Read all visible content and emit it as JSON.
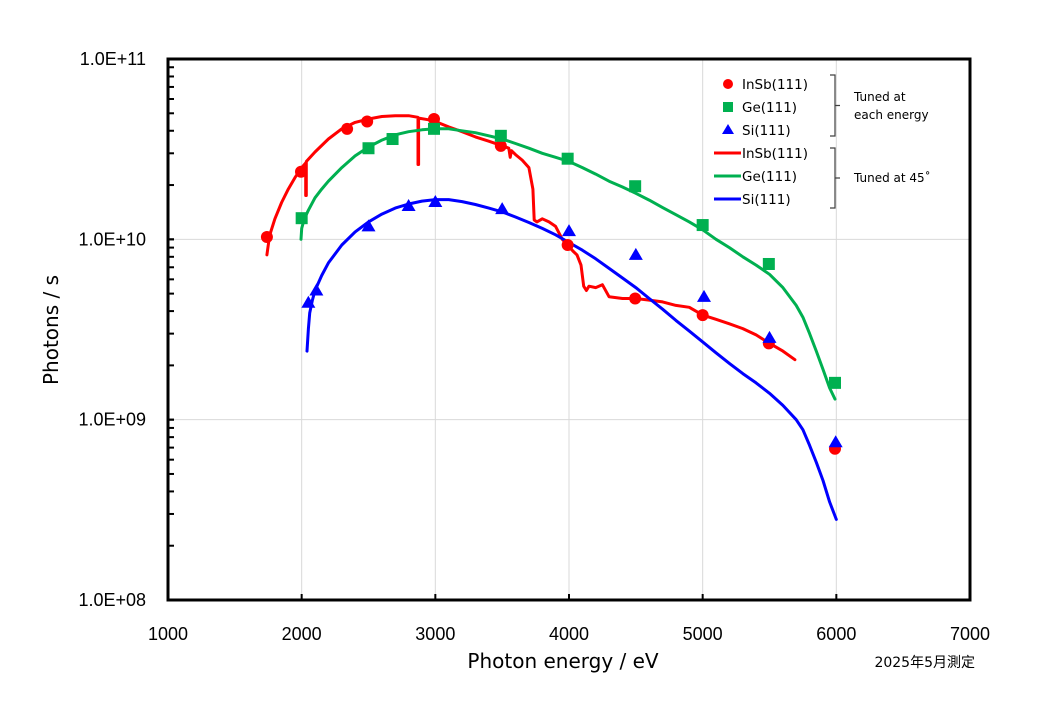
{
  "chart_data": {
    "type": "line",
    "title": "",
    "xlabel": "Photon energy / eV",
    "ylabel": "Photons / s",
    "xlim": [
      1000,
      7000
    ],
    "ylim": [
      100000000.0,
      100000000000.0
    ],
    "yscale": "log",
    "grid": true,
    "x_ticks": [
      1000,
      2000,
      3000,
      4000,
      5000,
      6000,
      7000
    ],
    "x_tick_labels": [
      "1000",
      "2000",
      "3000",
      "4000",
      "5000",
      "6000",
      "7000"
    ],
    "y_ticks": [
      100000000.0,
      1000000000.0,
      10000000000.0,
      100000000000.0
    ],
    "y_tick_labels": [
      "1.0E+08",
      "1.0E+09",
      "1.0E+10",
      "1.0E+11"
    ],
    "legend_position": "top-right",
    "legend_groups": [
      {
        "note": "Tuned at\neach energy",
        "note_lines": [
          "Tuned at",
          "each energy"
        ],
        "entries": [
          "InSb(111)",
          "Ge(111)",
          "Si(111)"
        ]
      },
      {
        "note": "Tuned at 45˚",
        "note_lines": [
          "Tuned at 45˚"
        ],
        "entries": [
          "InSb(111)",
          "Ge(111)",
          "Si(111)"
        ]
      }
    ],
    "footnote": "2025年5月測定",
    "colors": {
      "InSb": "#ff0000",
      "Ge": "#00b050",
      "Si": "#0000ff"
    },
    "series": [
      {
        "name": "InSb(111)",
        "group": "Tuned at each energy",
        "kind": "marker",
        "marker": "circle",
        "color": "#ff0000",
        "x": [
          1740,
          1995,
          2340,
          2490,
          2990,
          3490,
          3990,
          4495,
          5000,
          5495,
          5990
        ],
        "y": [
          10300000000.0,
          23700000000.0,
          41000000000.0,
          45000000000.0,
          46500000000.0,
          33000000000.0,
          9300000000.0,
          4700000000.0,
          3800000000.0,
          2650000000.0,
          690000000.0
        ]
      },
      {
        "name": "Ge(111)",
        "group": "Tuned at each energy",
        "kind": "marker",
        "marker": "square",
        "color": "#00b050",
        "x": [
          2000,
          2500,
          2680,
          2990,
          3490,
          3990,
          4495,
          5000,
          5495,
          5990
        ],
        "y": [
          13100000000.0,
          32000000000.0,
          36000000000.0,
          41000000000.0,
          37500000000.0,
          28000000000.0,
          19700000000.0,
          12000000000.0,
          7300000000.0,
          1600000000.0
        ]
      },
      {
        "name": "Si(111)",
        "group": "Tuned at each energy",
        "kind": "marker",
        "marker": "triangle",
        "color": "#0000ff",
        "x": [
          2050,
          2110,
          2500,
          2800,
          3000,
          3500,
          4000,
          4500,
          5010,
          5500,
          5995
        ],
        "y": [
          4450000000.0,
          5200000000.0,
          11800000000.0,
          15300000000.0,
          16100000000.0,
          14700000000.0,
          11100000000.0,
          8200000000.0,
          4800000000.0,
          2840000000.0,
          750000000.0
        ]
      },
      {
        "name": "InSb(111)",
        "group": "Tuned at 45˚",
        "kind": "line",
        "color": "#ff0000",
        "x": [
          1740,
          1760,
          1800,
          1850,
          1900,
          1950,
          2000,
          2030,
          2030,
          2035,
          2035,
          2100,
          2200,
          2300,
          2400,
          2500,
          2600,
          2700,
          2800,
          2870,
          2870,
          2875,
          2875,
          2950,
          3000,
          3100,
          3200,
          3300,
          3400,
          3500,
          3550,
          3560,
          3570,
          3600,
          3650,
          3700,
          3730,
          3740,
          3760,
          3800,
          3850,
          3900,
          3950,
          3990,
          4030,
          4060,
          4090,
          4110,
          4130,
          4150,
          4200,
          4250,
          4300,
          4350,
          4400,
          4500,
          4600,
          4700,
          4800,
          4900,
          5000,
          5100,
          5200,
          5300,
          5400,
          5500,
          5600,
          5690
        ],
        "y": [
          8200000000.0,
          10500000000.0,
          13000000000.0,
          16000000000.0,
          19000000000.0,
          22000000000.0,
          25000000000.0,
          26500000000.0,
          17500000000.0,
          17500000000.0,
          27000000000.0,
          30500000000.0,
          36000000000.0,
          41000000000.0,
          44500000000.0,
          46500000000.0,
          48000000000.0,
          48500000000.0,
          48500000000.0,
          47500000000.0,
          26000000000.0,
          26000000000.0,
          47000000000.0,
          46000000000.0,
          45000000000.0,
          42000000000.0,
          39500000000.0,
          37000000000.0,
          35000000000.0,
          33000000000.0,
          32000000000.0,
          28500000000.0,
          31000000000.0,
          29500000000.0,
          27500000000.0,
          25000000000.0,
          19000000000.0,
          12800000000.0,
          12500000000.0,
          13000000000.0,
          12500000000.0,
          11800000000.0,
          10000000000.0,
          9300000000.0,
          8600000000.0,
          8200000000.0,
          7200000000.0,
          5500000000.0,
          5200000000.0,
          5500000000.0,
          5400000000.0,
          5600000000.0,
          4800000000.0,
          4750000000.0,
          4700000000.0,
          4700000000.0,
          4600000000.0,
          4500000000.0,
          4300000000.0,
          4200000000.0,
          3800000000.0,
          3600000000.0,
          3400000000.0,
          3200000000.0,
          2950000000.0,
          2650000000.0,
          2400000000.0,
          2150000000.0
        ]
      },
      {
        "name": "Ge(111)",
        "group": "Tuned at 45˚",
        "kind": "line",
        "color": "#00b050",
        "x": [
          1995,
          2000,
          2020,
          2050,
          2100,
          2150,
          2200,
          2300,
          2400,
          2500,
          2600,
          2700,
          2800,
          2900,
          3000,
          3100,
          3200,
          3300,
          3400,
          3500,
          3600,
          3700,
          3800,
          3900,
          4000,
          4100,
          4200,
          4300,
          4400,
          4500,
          4600,
          4700,
          4800,
          4900,
          5000,
          5100,
          5200,
          5300,
          5400,
          5500,
          5600,
          5700,
          5750,
          5800,
          5850,
          5900,
          5950,
          5990
        ],
        "y": [
          10000000000.0,
          11500000000.0,
          13000000000.0,
          14500000000.0,
          17000000000.0,
          19000000000.0,
          21000000000.0,
          25000000000.0,
          29000000000.0,
          32500000000.0,
          35500000000.0,
          38000000000.0,
          39500000000.0,
          40500000000.0,
          41000000000.0,
          41000000000.0,
          40000000000.0,
          39000000000.0,
          37500000000.0,
          36000000000.0,
          34000000000.0,
          32000000000.0,
          30000000000.0,
          28500000000.0,
          27000000000.0,
          25000000000.0,
          23000000000.0,
          21000000000.0,
          19500000000.0,
          18000000000.0,
          16500000000.0,
          15000000000.0,
          13700000000.0,
          12500000000.0,
          11300000000.0,
          10000000000.0,
          9000000000.0,
          8000000000.0,
          7200000000.0,
          6400000000.0,
          5400000000.0,
          4300000000.0,
          3700000000.0,
          3000000000.0,
          2400000000.0,
          1900000000.0,
          1500000000.0,
          1300000000.0
        ]
      },
      {
        "name": "Si(111)",
        "group": "Tuned at 45˚",
        "kind": "line",
        "color": "#0000ff",
        "x": [
          2040,
          2050,
          2060,
          2080,
          2100,
          2150,
          2200,
          2300,
          2400,
          2500,
          2600,
          2700,
          2800,
          2900,
          3000,
          3100,
          3200,
          3300,
          3400,
          3500,
          3600,
          3700,
          3800,
          3900,
          4000,
          4100,
          4200,
          4300,
          4400,
          4500,
          4600,
          4700,
          4800,
          4900,
          5000,
          5100,
          5200,
          5300,
          5400,
          5500,
          5600,
          5700,
          5750,
          5800,
          5850,
          5900,
          5950,
          6000
        ],
        "y": [
          2400000000.0,
          3200000000.0,
          3900000000.0,
          4600000000.0,
          5200000000.0,
          6300000000.0,
          7400000000.0,
          9300000000.0,
          11000000000.0,
          12500000000.0,
          13800000000.0,
          14900000000.0,
          15700000000.0,
          16300000000.0,
          16600000000.0,
          16600000000.0,
          16200000000.0,
          15600000000.0,
          14900000000.0,
          14200000000.0,
          13300000000.0,
          12400000000.0,
          11500000000.0,
          10600000000.0,
          9600000000.0,
          8700000000.0,
          7800000000.0,
          6900000000.0,
          6100000000.0,
          5400000000.0,
          4700000000.0,
          4100000000.0,
          3550000000.0,
          3100000000.0,
          2700000000.0,
          2350000000.0,
          2050000000.0,
          1800000000.0,
          1600000000.0,
          1400000000.0,
          1200000000.0,
          1000000000.0,
          880000000.0,
          720000000.0,
          580000000.0,
          460000000.0,
          350000000.0,
          280000000.0
        ]
      }
    ]
  }
}
